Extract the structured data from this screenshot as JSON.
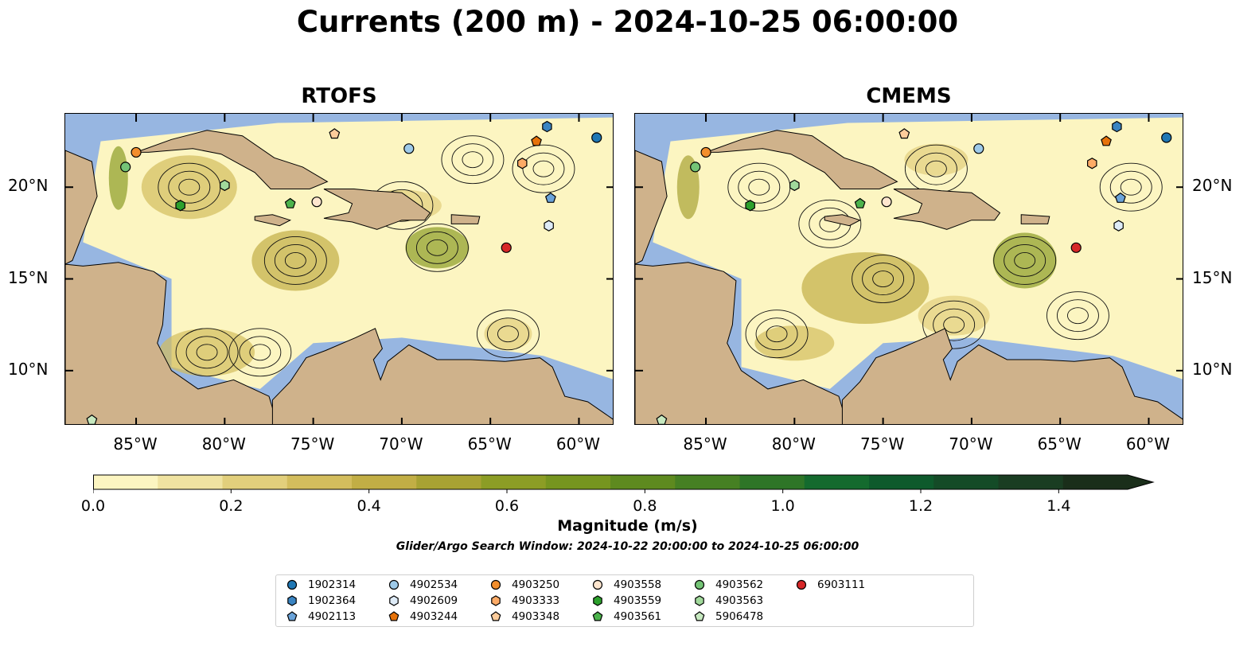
{
  "title": "Currents (200 m) - 2024-10-25 06:00:00",
  "panels": [
    {
      "title": "RTOFS"
    },
    {
      "title": "CMEMS"
    }
  ],
  "axes": {
    "lon_ticks": [
      "85°W",
      "80°W",
      "75°W",
      "70°W",
      "65°W",
      "60°W"
    ],
    "lat_ticks": [
      "20°N",
      "15°N",
      "10°N"
    ],
    "lon_values": [
      -85,
      -80,
      -75,
      -70,
      -65,
      -60
    ],
    "lat_values": [
      20,
      15,
      10
    ],
    "lon_range": [
      -89,
      -58
    ],
    "lat_range": [
      7,
      24
    ]
  },
  "colorbar": {
    "label": "Magnitude (m/s)",
    "ticks": [
      "0.0",
      "0.2",
      "0.4",
      "0.6",
      "0.8",
      "1.0",
      "1.2",
      "1.4"
    ],
    "tick_values": [
      0.0,
      0.2,
      0.4,
      0.6,
      0.8,
      1.0,
      1.2,
      1.4
    ],
    "range": [
      0,
      1.5
    ],
    "extend": "max",
    "colors": [
      "#fcf5c1",
      "#f0e3a1",
      "#e2cf7c",
      "#d3bd5d",
      "#c2ae45",
      "#a8a233",
      "#8c9d25",
      "#76951f",
      "#5e8a1f",
      "#468023",
      "#2e7527",
      "#146a2e",
      "#0e5a2c",
      "#144b27",
      "#1a3d22",
      "#1a2e1a"
    ]
  },
  "search_window": "Glider/Argo Search Window: 2024-10-22 20:00:00 to 2024-10-25 06:00:00",
  "colors": {
    "ocean": "#97b6e1",
    "land": "#cfb28b",
    "current_low": "#fcf5c1"
  },
  "legend": [
    {
      "id": "1902314",
      "marker": "circle",
      "color": "#1f77b4"
    },
    {
      "id": "1902364",
      "marker": "hexagon",
      "color": "#3a84c2"
    },
    {
      "id": "4902113",
      "marker": "pentagon",
      "color": "#6aa3d9"
    },
    {
      "id": "4902534",
      "marker": "circle",
      "color": "#9ecae9"
    },
    {
      "id": "4902609",
      "marker": "hexagon",
      "color": "#deebf7"
    },
    {
      "id": "4903244",
      "marker": "pentagon",
      "color": "#e6720a"
    },
    {
      "id": "4903250",
      "marker": "circle",
      "color": "#f28e2c"
    },
    {
      "id": "4903333",
      "marker": "hexagon",
      "color": "#fdab67"
    },
    {
      "id": "4903348",
      "marker": "pentagon",
      "color": "#fdcc9b"
    },
    {
      "id": "4903558",
      "marker": "circle",
      "color": "#fee6cf"
    },
    {
      "id": "4903559",
      "marker": "hexagon",
      "color": "#2ca02c"
    },
    {
      "id": "4903561",
      "marker": "pentagon",
      "color": "#4cb34c"
    },
    {
      "id": "4903562",
      "marker": "circle",
      "color": "#74c476"
    },
    {
      "id": "4903563",
      "marker": "hexagon",
      "color": "#a1d99b"
    },
    {
      "id": "5906478",
      "marker": "pentagon",
      "color": "#c7e9c0"
    },
    {
      "id": "6903111",
      "marker": "circle",
      "color": "#d62728"
    }
  ],
  "floats": [
    {
      "id": "1902314",
      "lon": -59.0,
      "lat": 22.7
    },
    {
      "id": "1902364",
      "lon": -61.8,
      "lat": 23.3
    },
    {
      "id": "4902113",
      "lon": -61.6,
      "lat": 19.4
    },
    {
      "id": "4902534",
      "lon": -69.6,
      "lat": 22.1
    },
    {
      "id": "4902609",
      "lon": -61.7,
      "lat": 17.9
    },
    {
      "id": "4903244",
      "lon": -62.4,
      "lat": 22.5
    },
    {
      "id": "4903250",
      "lon": -85.0,
      "lat": 21.9
    },
    {
      "id": "4903333",
      "lon": -63.2,
      "lat": 21.3
    },
    {
      "id": "4903348",
      "lon": -73.8,
      "lat": 22.9
    },
    {
      "id": "4903558",
      "lon": -74.8,
      "lat": 19.2
    },
    {
      "id": "4903559",
      "lon": -82.5,
      "lat": 19.0
    },
    {
      "id": "4903561",
      "lon": -76.3,
      "lat": 19.1
    },
    {
      "id": "4903562",
      "lon": -85.6,
      "lat": 21.1
    },
    {
      "id": "4903563",
      "lon": -80.0,
      "lat": 20.1
    },
    {
      "id": "5906478",
      "lon": -87.5,
      "lat": 7.3
    },
    {
      "id": "6903111",
      "lon": -64.1,
      "lat": 16.7
    }
  ]
}
